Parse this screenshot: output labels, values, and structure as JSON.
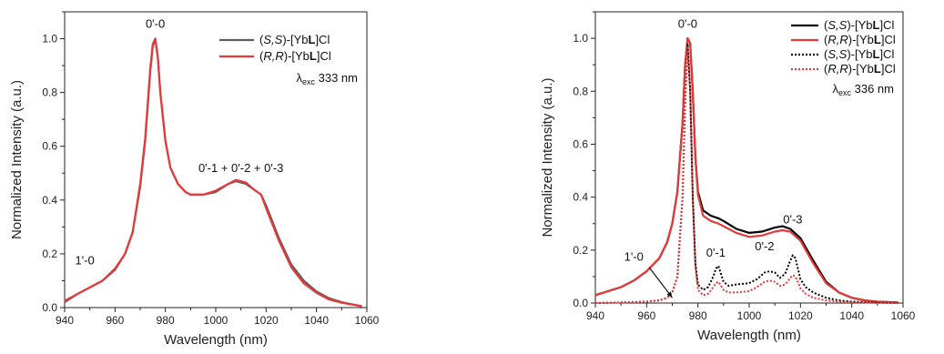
{
  "chart_data": [
    {
      "type": "line",
      "xlabel": "Wavelength (nm)",
      "ylabel": "Normalized Intensity (a.u.)",
      "xlim": [
        940,
        1060
      ],
      "ylim": [
        0.0,
        1.1
      ],
      "xticks": [
        940,
        960,
        980,
        1000,
        1020,
        1040,
        1060
      ],
      "yticks": [
        0.0,
        0.2,
        0.4,
        0.6,
        0.8,
        1.0
      ],
      "ytick_labels": [
        "0.0",
        "0.2",
        "0.4",
        "0.6",
        "0.8",
        "1.0"
      ],
      "grid": false,
      "legend": {
        "placement": "top-right"
      },
      "legend_excitation": {
        "prefix": "λ",
        "subscript": "exc",
        "value": " 333 nm"
      },
      "annotations": [
        {
          "text": "0'-0",
          "x": 976,
          "y": 1.04
        },
        {
          "text": "0'-1 + 0'-2 + 0'-3",
          "x": 1010,
          "y": 0.505
        },
        {
          "text": "1'-0",
          "x": 948,
          "y": 0.16
        }
      ],
      "series": [
        {
          "label_parts": [
            "(",
            "S,S",
            ")-[Yb",
            "L",
            "]Cl"
          ],
          "color": "#5f5f5f",
          "dash": "solid",
          "x": [
            940,
            945,
            950,
            955,
            960,
            964,
            967,
            970,
            972,
            974,
            975,
            976,
            977,
            978,
            980,
            982,
            985,
            988,
            990,
            995,
            1000,
            1005,
            1008,
            1012,
            1015,
            1018,
            1020,
            1025,
            1030,
            1035,
            1040,
            1045,
            1050,
            1055,
            1058
          ],
          "y": [
            0.02,
            0.05,
            0.075,
            0.1,
            0.14,
            0.2,
            0.28,
            0.45,
            0.62,
            0.88,
            0.97,
            1.0,
            0.93,
            0.8,
            0.62,
            0.52,
            0.46,
            0.43,
            0.42,
            0.42,
            0.43,
            0.46,
            0.47,
            0.46,
            0.44,
            0.42,
            0.38,
            0.26,
            0.16,
            0.1,
            0.06,
            0.035,
            0.02,
            0.01,
            0.005
          ]
        },
        {
          "label_parts": [
            "(",
            "R,R",
            ")-[Yb",
            "L",
            "]Cl"
          ],
          "color": "#e8393a",
          "dash": "solid",
          "x": [
            940,
            945,
            950,
            955,
            960,
            964,
            967,
            970,
            972,
            974,
            975,
            976,
            977,
            978,
            980,
            982,
            985,
            988,
            990,
            995,
            1000,
            1005,
            1008,
            1012,
            1015,
            1018,
            1020,
            1025,
            1030,
            1035,
            1040,
            1045,
            1050,
            1055,
            1058
          ],
          "y": [
            0.025,
            0.05,
            0.075,
            0.1,
            0.145,
            0.2,
            0.28,
            0.46,
            0.63,
            0.89,
            0.98,
            1.0,
            0.93,
            0.8,
            0.62,
            0.52,
            0.46,
            0.43,
            0.42,
            0.42,
            0.435,
            0.46,
            0.475,
            0.465,
            0.44,
            0.42,
            0.37,
            0.25,
            0.15,
            0.09,
            0.055,
            0.03,
            0.018,
            0.01,
            0.005
          ]
        }
      ]
    },
    {
      "type": "line",
      "xlabel": "Wavelength (nm)",
      "ylabel": "Normalized Intensity (a.u.)",
      "xlim": [
        940,
        1060
      ],
      "ylim": [
        0.0,
        1.1
      ],
      "xticks": [
        940,
        960,
        980,
        1000,
        1020,
        1040,
        1060
      ],
      "yticks": [
        0.0,
        0.2,
        0.4,
        0.6,
        0.8,
        1.0
      ],
      "ytick_labels": [
        "0.0",
        "0.2",
        "0.4",
        "0.6",
        "0.8",
        "1.0"
      ],
      "grid": false,
      "legend": {
        "placement": "top-right"
      },
      "legend_excitation": {
        "prefix": "λ",
        "subscript": "exc",
        "value": " 336 nm"
      },
      "annotations": [
        {
          "text": "0'-0",
          "x": 976,
          "y": 1.04
        },
        {
          "text": "1'-0",
          "x": 955,
          "y": 0.16
        },
        {
          "text": "0'-1",
          "x": 987,
          "y": 0.175
        },
        {
          "text": "0'-2",
          "x": 1006,
          "y": 0.2
        },
        {
          "text": "0'-3",
          "x": 1017,
          "y": 0.3
        }
      ],
      "arrow": {
        "from": [
          961,
          0.135
        ],
        "to": [
          970,
          0.02
        ]
      },
      "series": [
        {
          "label_parts": [
            "(",
            "S,S",
            ")-[Yb",
            "L",
            "]Cl"
          ],
          "color": "#000000",
          "dash": "solid",
          "x": [
            940,
            945,
            950,
            955,
            960,
            965,
            968,
            970,
            972,
            974,
            975,
            976,
            977,
            978,
            979,
            980,
            982,
            985,
            988,
            990,
            995,
            1000,
            1005,
            1010,
            1013,
            1016,
            1020,
            1025,
            1030,
            1035,
            1040,
            1045,
            1050,
            1055,
            1058
          ],
          "y": [
            0.03,
            0.045,
            0.06,
            0.085,
            0.12,
            0.17,
            0.23,
            0.3,
            0.42,
            0.68,
            0.9,
            1.0,
            0.98,
            0.8,
            0.55,
            0.42,
            0.35,
            0.33,
            0.32,
            0.31,
            0.28,
            0.265,
            0.27,
            0.285,
            0.29,
            0.28,
            0.245,
            0.16,
            0.08,
            0.04,
            0.02,
            0.01,
            0.005,
            0.003,
            0.002
          ]
        },
        {
          "label_parts": [
            "(",
            "R,R",
            ")-[Yb",
            "L",
            "]Cl"
          ],
          "color": "#e8393a",
          "dash": "solid",
          "x": [
            940,
            945,
            950,
            955,
            960,
            965,
            968,
            970,
            972,
            974,
            975,
            976,
            977,
            978,
            979,
            980,
            982,
            985,
            988,
            990,
            995,
            1000,
            1005,
            1010,
            1013,
            1016,
            1020,
            1025,
            1030,
            1035,
            1040,
            1045,
            1050,
            1055,
            1058
          ],
          "y": [
            0.03,
            0.045,
            0.06,
            0.085,
            0.12,
            0.17,
            0.23,
            0.3,
            0.42,
            0.68,
            0.9,
            1.0,
            0.98,
            0.8,
            0.55,
            0.41,
            0.33,
            0.31,
            0.3,
            0.29,
            0.265,
            0.25,
            0.255,
            0.27,
            0.275,
            0.27,
            0.235,
            0.15,
            0.075,
            0.04,
            0.02,
            0.01,
            0.005,
            0.003,
            0.002
          ]
        },
        {
          "label_parts": [
            "(",
            "S,S",
            ")-[Yb",
            "L",
            "]Cl"
          ],
          "color": "#000000",
          "dash": "dotted",
          "x": [
            940,
            950,
            960,
            965,
            968,
            970,
            972,
            974,
            975,
            976,
            977,
            978,
            979,
            980,
            982,
            984,
            986,
            987,
            988,
            989,
            990,
            992,
            995,
            1000,
            1003,
            1006,
            1008,
            1010,
            1012,
            1014,
            1016,
            1017,
            1018,
            1019,
            1020,
            1022,
            1025,
            1030,
            1035,
            1040,
            1050,
            1058
          ],
          "y": [
            0.0,
            0.002,
            0.005,
            0.01,
            0.02,
            0.04,
            0.1,
            0.4,
            0.75,
            0.98,
            0.8,
            0.4,
            0.15,
            0.07,
            0.05,
            0.06,
            0.1,
            0.13,
            0.14,
            0.11,
            0.08,
            0.065,
            0.07,
            0.075,
            0.09,
            0.115,
            0.12,
            0.115,
            0.095,
            0.11,
            0.16,
            0.18,
            0.17,
            0.13,
            0.09,
            0.06,
            0.04,
            0.02,
            0.01,
            0.005,
            0.002,
            0.0
          ]
        },
        {
          "label_parts": [
            "(",
            "R,R",
            ")-[Yb",
            "L",
            "]Cl"
          ],
          "color": "#e8393a",
          "dash": "dotted",
          "x": [
            940,
            950,
            960,
            965,
            968,
            970,
            972,
            974,
            975,
            976,
            977,
            978,
            979,
            980,
            982,
            984,
            986,
            987,
            988,
            989,
            990,
            992,
            995,
            1000,
            1003,
            1006,
            1008,
            1010,
            1012,
            1014,
            1016,
            1017,
            1018,
            1019,
            1020,
            1022,
            1025,
            1030,
            1035,
            1040,
            1050,
            1058
          ],
          "y": [
            0.0,
            0.002,
            0.005,
            0.01,
            0.02,
            0.04,
            0.1,
            0.4,
            0.75,
            0.97,
            0.8,
            0.4,
            0.14,
            0.05,
            0.03,
            0.035,
            0.06,
            0.075,
            0.08,
            0.065,
            0.05,
            0.04,
            0.04,
            0.045,
            0.06,
            0.08,
            0.085,
            0.08,
            0.065,
            0.07,
            0.095,
            0.105,
            0.1,
            0.08,
            0.055,
            0.035,
            0.02,
            0.01,
            0.005,
            0.003,
            0.001,
            0.0
          ]
        }
      ]
    }
  ]
}
